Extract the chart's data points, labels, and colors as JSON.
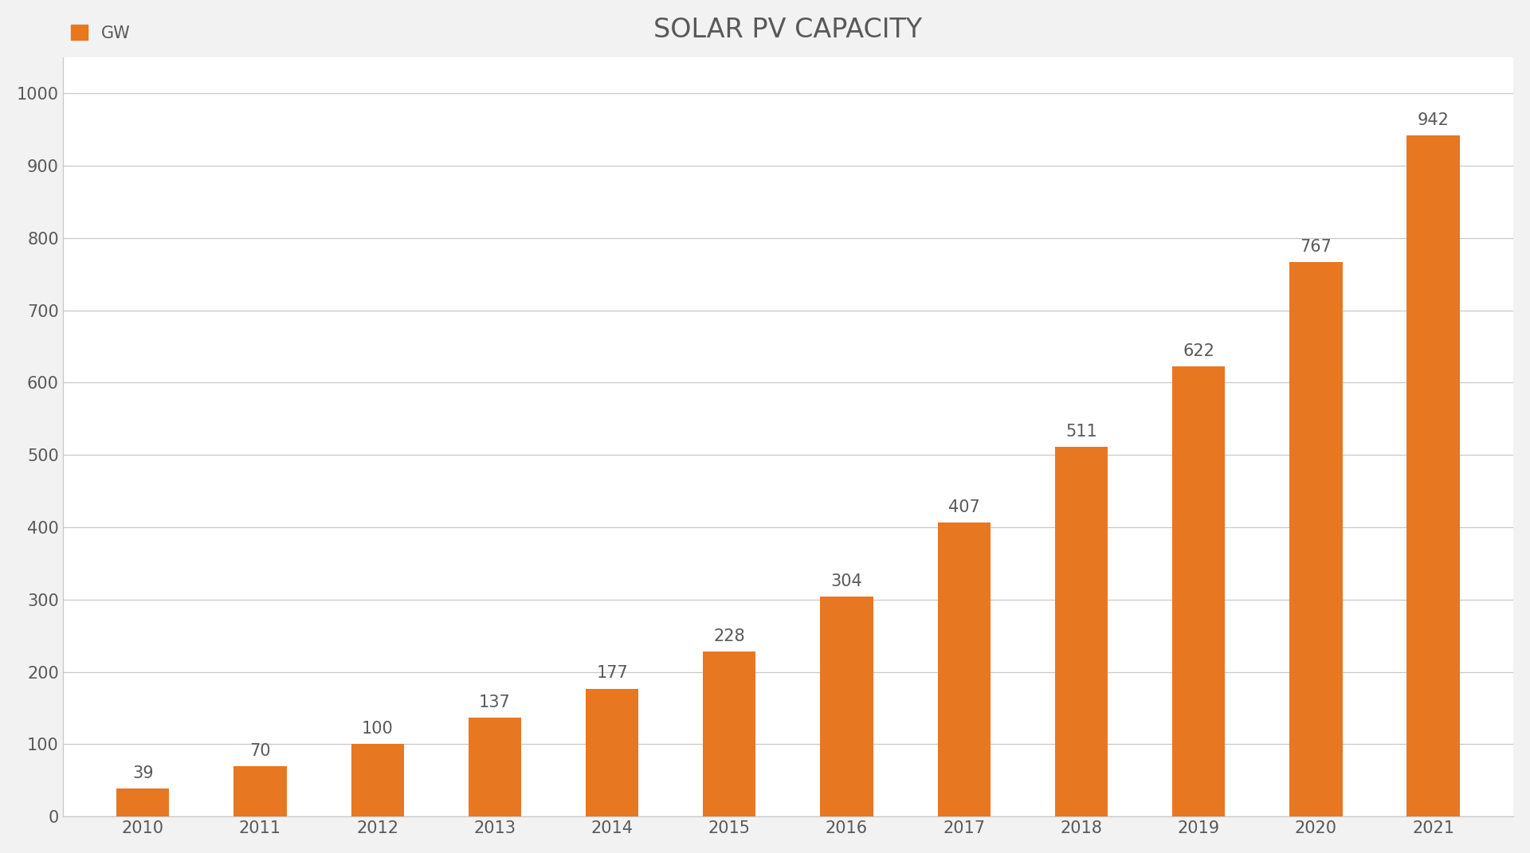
{
  "title": "SOLAR PV CAPACITY",
  "legend_label": "GW",
  "categories": [
    "2010",
    "2011",
    "2012",
    "2013",
    "2014",
    "2015",
    "2016",
    "2017",
    "2018",
    "2019",
    "2020",
    "2021"
  ],
  "values": [
    39,
    70,
    100,
    137,
    177,
    228,
    304,
    407,
    511,
    622,
    767,
    942
  ],
  "bar_color": "#E87722",
  "background_color": "#FFFFFF",
  "figure_background": "#F2F2F2",
  "title_fontsize": 24,
  "tick_fontsize": 15,
  "legend_fontsize": 15,
  "bar_label_fontsize": 15,
  "ylim": [
    0,
    1050
  ],
  "yticks": [
    0,
    100,
    200,
    300,
    400,
    500,
    600,
    700,
    800,
    900,
    1000
  ],
  "grid_color": "#C8C8C8",
  "text_color": "#595959",
  "bar_width": 0.45,
  "spine_color": "#BEBEBE"
}
